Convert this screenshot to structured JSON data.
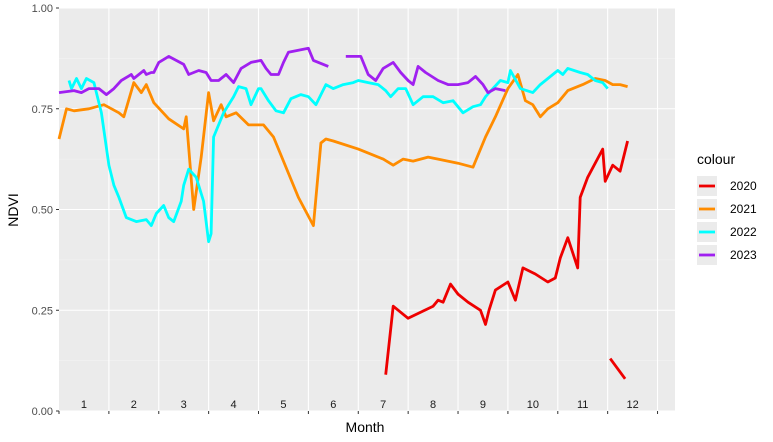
{
  "chart_data": {
    "type": "line",
    "title": "",
    "xlabel": "Month",
    "ylabel": "NDVI",
    "ylim": [
      0,
      1
    ],
    "xlim": [
      0,
      12.35
    ],
    "y_ticks": [
      "0.00",
      "0.25",
      "0.50",
      "0.75",
      "1.00"
    ],
    "y_tick_values": [
      0,
      0.25,
      0.5,
      0.75,
      1.0
    ],
    "month_labels": [
      "1",
      "2",
      "3",
      "4",
      "5",
      "6",
      "7",
      "8",
      "9",
      "10",
      "11",
      "12"
    ],
    "grid": true,
    "legend": {
      "title": "colour",
      "position": "right"
    },
    "series": [
      {
        "name": "2020",
        "color": "#ee0000",
        "segments": [
          [
            [
              6.55,
              0.09
            ],
            [
              6.7,
              0.26
            ],
            [
              7.0,
              0.23
            ],
            [
              7.5,
              0.26
            ],
            [
              7.6,
              0.275
            ],
            [
              7.7,
              0.27
            ],
            [
              7.85,
              0.315
            ],
            [
              8.0,
              0.29
            ],
            [
              8.2,
              0.27
            ],
            [
              8.45,
              0.25
            ],
            [
              8.55,
              0.215
            ],
            [
              8.62,
              0.25
            ],
            [
              8.75,
              0.3
            ],
            [
              9.0,
              0.32
            ],
            [
              9.15,
              0.275
            ],
            [
              9.3,
              0.355
            ],
            [
              9.55,
              0.34
            ],
            [
              9.8,
              0.32
            ],
            [
              9.95,
              0.33
            ],
            [
              10.05,
              0.38
            ],
            [
              10.2,
              0.43
            ],
            [
              10.4,
              0.355
            ],
            [
              10.45,
              0.53
            ],
            [
              10.6,
              0.58
            ],
            [
              10.9,
              0.65
            ],
            [
              10.95,
              0.57
            ],
            [
              11.1,
              0.61
            ],
            [
              11.25,
              0.595
            ],
            [
              11.4,
              0.67
            ]
          ],
          [
            [
              11.05,
              0.13
            ],
            [
              11.35,
              0.08
            ]
          ]
        ]
      },
      {
        "name": "2021",
        "color": "#ff8c00",
        "segments": [
          [
            [
              0.0,
              0.675
            ],
            [
              0.15,
              0.75
            ],
            [
              0.3,
              0.745
            ],
            [
              0.6,
              0.75
            ],
            [
              0.9,
              0.76
            ],
            [
              1.2,
              0.74
            ],
            [
              1.3,
              0.73
            ],
            [
              1.5,
              0.815
            ],
            [
              1.65,
              0.79
            ],
            [
              1.75,
              0.81
            ],
            [
              1.9,
              0.765
            ],
            [
              2.2,
              0.725
            ],
            [
              2.5,
              0.7
            ],
            [
              2.55,
              0.73
            ],
            [
              2.7,
              0.5
            ],
            [
              2.85,
              0.63
            ],
            [
              3.0,
              0.79
            ],
            [
              3.1,
              0.72
            ],
            [
              3.25,
              0.76
            ],
            [
              3.35,
              0.73
            ],
            [
              3.55,
              0.74
            ],
            [
              3.8,
              0.71
            ],
            [
              4.1,
              0.71
            ],
            [
              4.3,
              0.68
            ],
            [
              4.8,
              0.53
            ],
            [
              5.1,
              0.46
            ],
            [
              5.25,
              0.665
            ],
            [
              5.35,
              0.675
            ],
            [
              5.5,
              0.67
            ],
            [
              6.0,
              0.65
            ],
            [
              6.5,
              0.625
            ],
            [
              6.7,
              0.61
            ],
            [
              6.9,
              0.625
            ],
            [
              7.1,
              0.62
            ],
            [
              7.4,
              0.63
            ],
            [
              7.6,
              0.625
            ],
            [
              8.0,
              0.615
            ],
            [
              8.3,
              0.605
            ],
            [
              8.55,
              0.68
            ],
            [
              8.75,
              0.73
            ],
            [
              9.0,
              0.8
            ],
            [
              9.2,
              0.835
            ],
            [
              9.35,
              0.77
            ],
            [
              9.5,
              0.76
            ],
            [
              9.65,
              0.73
            ],
            [
              9.8,
              0.75
            ],
            [
              10.0,
              0.765
            ],
            [
              10.2,
              0.795
            ],
            [
              10.5,
              0.81
            ],
            [
              10.75,
              0.825
            ],
            [
              10.95,
              0.82
            ],
            [
              11.1,
              0.81
            ],
            [
              11.25,
              0.81
            ],
            [
              11.4,
              0.805
            ]
          ]
        ]
      },
      {
        "name": "2022",
        "color": "#00ffff",
        "segments": [
          [
            [
              0.2,
              0.82
            ],
            [
              0.25,
              0.8
            ],
            [
              0.35,
              0.825
            ],
            [
              0.45,
              0.8
            ],
            [
              0.55,
              0.825
            ],
            [
              0.7,
              0.815
            ],
            [
              0.85,
              0.74
            ],
            [
              1.0,
              0.61
            ],
            [
              1.1,
              0.56
            ],
            [
              1.2,
              0.53
            ],
            [
              1.35,
              0.48
            ],
            [
              1.55,
              0.47
            ],
            [
              1.75,
              0.475
            ],
            [
              1.85,
              0.46
            ],
            [
              1.95,
              0.49
            ],
            [
              2.1,
              0.51
            ],
            [
              2.2,
              0.48
            ],
            [
              2.3,
              0.47
            ],
            [
              2.45,
              0.52
            ],
            [
              2.5,
              0.56
            ],
            [
              2.6,
              0.6
            ],
            [
              2.75,
              0.58
            ],
            [
              2.9,
              0.52
            ],
            [
              3.0,
              0.42
            ],
            [
              3.05,
              0.44
            ],
            [
              3.1,
              0.68
            ],
            [
              3.3,
              0.74
            ],
            [
              3.5,
              0.78
            ],
            [
              3.6,
              0.805
            ],
            [
              3.75,
              0.8
            ],
            [
              3.85,
              0.76
            ],
            [
              4.0,
              0.8
            ],
            [
              4.05,
              0.8
            ],
            [
              4.2,
              0.77
            ],
            [
              4.35,
              0.745
            ],
            [
              4.5,
              0.74
            ],
            [
              4.65,
              0.775
            ],
            [
              4.85,
              0.785
            ],
            [
              5.0,
              0.78
            ],
            [
              5.15,
              0.76
            ],
            [
              5.35,
              0.81
            ],
            [
              5.5,
              0.8
            ],
            [
              5.7,
              0.81
            ],
            [
              5.9,
              0.815
            ],
            [
              6.0,
              0.82
            ],
            [
              6.2,
              0.815
            ],
            [
              6.4,
              0.81
            ],
            [
              6.55,
              0.795
            ],
            [
              6.65,
              0.78
            ],
            [
              6.8,
              0.8
            ],
            [
              6.95,
              0.8
            ],
            [
              7.1,
              0.76
            ],
            [
              7.3,
              0.78
            ],
            [
              7.5,
              0.78
            ],
            [
              7.7,
              0.765
            ],
            [
              7.9,
              0.77
            ],
            [
              8.1,
              0.74
            ],
            [
              8.3,
              0.755
            ],
            [
              8.45,
              0.76
            ],
            [
              8.55,
              0.78
            ],
            [
              8.7,
              0.8
            ],
            [
              8.85,
              0.82
            ],
            [
              9.0,
              0.815
            ],
            [
              9.05,
              0.845
            ],
            [
              9.25,
              0.8
            ],
            [
              9.5,
              0.79
            ],
            [
              9.65,
              0.81
            ],
            [
              9.9,
              0.835
            ],
            [
              10.0,
              0.845
            ],
            [
              10.1,
              0.835
            ],
            [
              10.2,
              0.85
            ],
            [
              10.45,
              0.84
            ],
            [
              10.6,
              0.835
            ],
            [
              10.75,
              0.82
            ],
            [
              10.9,
              0.815
            ],
            [
              11.0,
              0.8
            ]
          ]
        ]
      },
      {
        "name": "2023",
        "color": "#a020f0",
        "segments": [
          [
            [
              0.0,
              0.79
            ],
            [
              0.3,
              0.795
            ],
            [
              0.45,
              0.79
            ],
            [
              0.6,
              0.8
            ],
            [
              0.8,
              0.8
            ],
            [
              0.95,
              0.785
            ],
            [
              1.1,
              0.8
            ],
            [
              1.25,
              0.82
            ],
            [
              1.45,
              0.835
            ],
            [
              1.5,
              0.825
            ],
            [
              1.7,
              0.845
            ],
            [
              1.75,
              0.835
            ],
            [
              1.85,
              0.84
            ],
            [
              1.9,
              0.84
            ],
            [
              2.0,
              0.865
            ],
            [
              2.2,
              0.88
            ],
            [
              2.35,
              0.87
            ],
            [
              2.5,
              0.86
            ],
            [
              2.6,
              0.835
            ],
            [
              2.8,
              0.845
            ],
            [
              2.95,
              0.84
            ],
            [
              3.05,
              0.82
            ],
            [
              3.2,
              0.82
            ],
            [
              3.35,
              0.835
            ],
            [
              3.5,
              0.815
            ],
            [
              3.65,
              0.85
            ],
            [
              3.85,
              0.865
            ],
            [
              4.05,
              0.87
            ],
            [
              4.15,
              0.85
            ],
            [
              4.25,
              0.835
            ],
            [
              4.4,
              0.835
            ],
            [
              4.5,
              0.865
            ],
            [
              4.6,
              0.89
            ],
            [
              4.8,
              0.895
            ],
            [
              5.0,
              0.9
            ],
            [
              5.1,
              0.87
            ],
            [
              5.2,
              0.865
            ],
            [
              5.4,
              0.855
            ]
          ],
          [
            [
              5.75,
              0.88
            ],
            [
              6.05,
              0.88
            ],
            [
              6.2,
              0.835
            ],
            [
              6.35,
              0.82
            ],
            [
              6.5,
              0.85
            ],
            [
              6.7,
              0.865
            ],
            [
              6.85,
              0.84
            ],
            [
              7.0,
              0.82
            ],
            [
              7.1,
              0.81
            ],
            [
              7.2,
              0.855
            ],
            [
              7.35,
              0.84
            ],
            [
              7.6,
              0.82
            ],
            [
              7.8,
              0.81
            ],
            [
              8.0,
              0.81
            ],
            [
              8.2,
              0.815
            ],
            [
              8.35,
              0.83
            ],
            [
              8.5,
              0.81
            ],
            [
              8.6,
              0.79
            ],
            [
              8.75,
              0.8
            ],
            [
              8.95,
              0.795
            ]
          ]
        ]
      }
    ]
  }
}
